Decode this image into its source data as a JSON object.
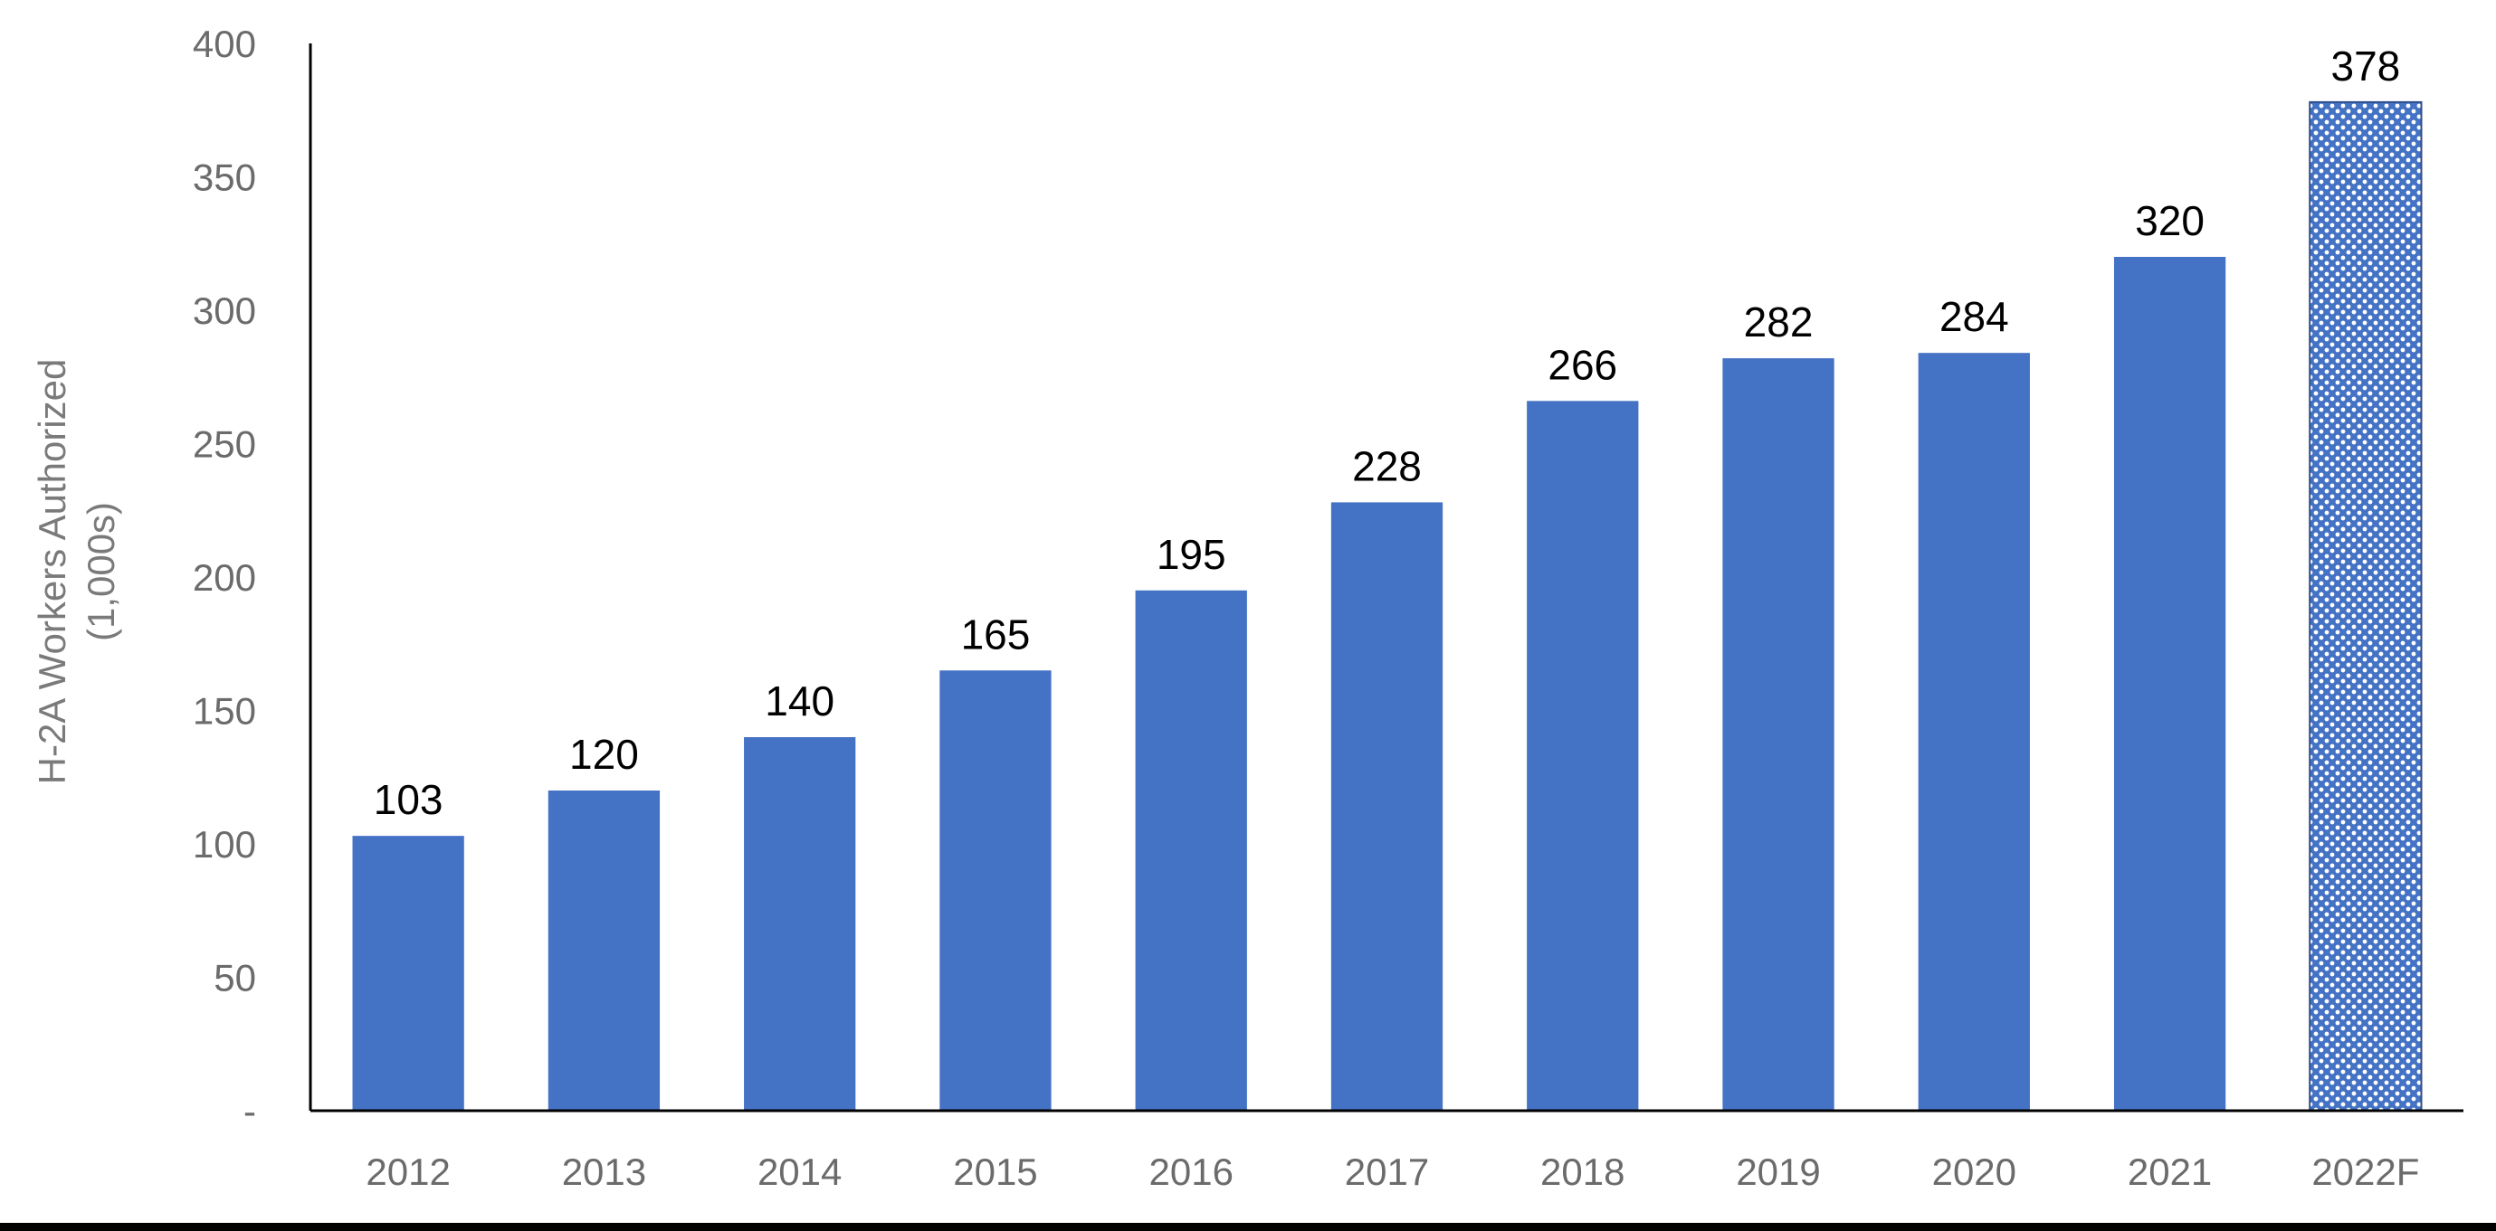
{
  "chart_data": {
    "type": "bar",
    "title": "",
    "xlabel": "",
    "ylabel": "H-2A Workers Authorized (1,000s)",
    "ylabel_lines": [
      "H-2A Workers Authorized",
      "(1,000s)"
    ],
    "categories": [
      "2012",
      "2013",
      "2014",
      "2015",
      "2016",
      "2017",
      "2018",
      "2019",
      "2020",
      "2021",
      "2022F"
    ],
    "values": [
      103,
      120,
      140,
      165,
      195,
      228,
      266,
      282,
      284,
      320,
      378
    ],
    "data_labels": [
      "103",
      "120",
      "140",
      "165",
      "195",
      "228",
      "266",
      "282",
      "284",
      "320",
      "378"
    ],
    "forecast": [
      false,
      false,
      false,
      false,
      false,
      false,
      false,
      false,
      false,
      false,
      true
    ],
    "ylim": [
      0,
      400
    ],
    "yticks": [
      0,
      50,
      100,
      150,
      200,
      250,
      300,
      350,
      400
    ],
    "ytick_labels": [
      "-",
      "50",
      "100",
      "150",
      "200",
      "250",
      "300",
      "350",
      "400"
    ],
    "grid": false,
    "legend": "none",
    "colors": {
      "bar": "#4472C4",
      "forecast_fill": "#4472C4",
      "forecast_dot": "#ffffff",
      "axis": "#000000"
    }
  }
}
